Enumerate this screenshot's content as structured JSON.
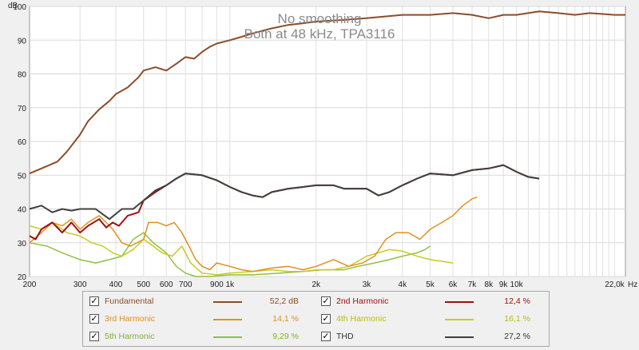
{
  "chart_data": {
    "type": "line",
    "title": "No smoothing",
    "subtitle": "Both at 48 kHz, TPA3116",
    "ylabel": "dB",
    "xlabel": "Hz",
    "x_scale": "log",
    "xlim": [
      200,
      24000
    ],
    "ylim": [
      20,
      100
    ],
    "y_ticks": [
      20,
      30,
      40,
      50,
      60,
      70,
      80,
      90,
      100
    ],
    "x_ticks": [
      {
        "value": 200,
        "label": "200"
      },
      {
        "value": 300,
        "label": "300"
      },
      {
        "value": 400,
        "label": "400"
      },
      {
        "value": 500,
        "label": "500"
      },
      {
        "value": 600,
        "label": "600"
      },
      {
        "value": 700,
        "label": "700"
      },
      {
        "value": 900,
        "label": "900"
      },
      {
        "value": 1000,
        "label": "1k"
      },
      {
        "value": 2000,
        "label": "2k"
      },
      {
        "value": 3000,
        "label": "3k"
      },
      {
        "value": 4000,
        "label": "4k"
      },
      {
        "value": 5000,
        "label": "5k"
      },
      {
        "value": 6000,
        "label": "6k"
      },
      {
        "value": 7000,
        "label": "7k"
      },
      {
        "value": 8000,
        "label": "8k"
      },
      {
        "value": 9000,
        "label": "9k"
      },
      {
        "value": 10000,
        "label": "10k"
      },
      {
        "value": 22000,
        "label": "22,0k"
      }
    ],
    "series": [
      {
        "name": "Fundamental",
        "color": "#8b4d2a",
        "value_label": "52,2 dB",
        "points": [
          [
            200,
            50.5
          ],
          [
            220,
            52
          ],
          [
            250,
            54
          ],
          [
            270,
            57
          ],
          [
            300,
            62
          ],
          [
            320,
            66
          ],
          [
            350,
            69.5
          ],
          [
            380,
            72
          ],
          [
            400,
            74
          ],
          [
            440,
            76
          ],
          [
            480,
            79
          ],
          [
            500,
            81
          ],
          [
            550,
            82
          ],
          [
            600,
            81
          ],
          [
            650,
            83
          ],
          [
            700,
            85
          ],
          [
            750,
            84.5
          ],
          [
            800,
            86.5
          ],
          [
            850,
            88
          ],
          [
            900,
            89
          ],
          [
            1000,
            90
          ],
          [
            1100,
            91
          ],
          [
            1200,
            92
          ],
          [
            1400,
            93.5
          ],
          [
            1600,
            94.5
          ],
          [
            1800,
            95
          ],
          [
            2000,
            95.5
          ],
          [
            2500,
            96
          ],
          [
            3000,
            96.5
          ],
          [
            4000,
            97.5
          ],
          [
            5000,
            97.5
          ],
          [
            6000,
            98
          ],
          [
            7000,
            97.5
          ],
          [
            8000,
            96.5
          ],
          [
            9000,
            97.5
          ],
          [
            10000,
            97.5
          ],
          [
            12000,
            98.5
          ],
          [
            14000,
            98
          ],
          [
            16000,
            97.5
          ],
          [
            18000,
            98
          ],
          [
            22000,
            97.5
          ],
          [
            24000,
            97.5
          ]
        ]
      },
      {
        "name": "2nd Harmonic",
        "color": "#a01010",
        "value_label": "12,4 %",
        "points": [
          [
            200,
            32
          ],
          [
            210,
            31
          ],
          [
            220,
            34
          ],
          [
            240,
            36
          ],
          [
            260,
            33
          ],
          [
            280,
            36
          ],
          [
            300,
            33
          ],
          [
            320,
            35
          ],
          [
            350,
            37
          ],
          [
            370,
            34.5
          ],
          [
            390,
            36
          ],
          [
            410,
            35
          ],
          [
            440,
            38
          ],
          [
            480,
            39
          ],
          [
            500,
            42.5
          ],
          [
            550,
            45
          ],
          [
            600,
            47
          ],
          [
            650,
            49
          ],
          [
            700,
            50.5
          ],
          [
            800,
            50
          ],
          [
            900,
            48.5
          ],
          [
            1000,
            46.5
          ],
          [
            1100,
            45
          ],
          [
            1200,
            44
          ],
          [
            1300,
            43.5
          ],
          [
            1400,
            45
          ],
          [
            1600,
            46
          ],
          [
            1800,
            46.5
          ],
          [
            2000,
            47
          ],
          [
            2300,
            47
          ],
          [
            2500,
            46
          ],
          [
            3000,
            46
          ],
          [
            3300,
            44
          ],
          [
            3600,
            45
          ],
          [
            4000,
            47
          ],
          [
            4500,
            49
          ],
          [
            5000,
            50.5
          ],
          [
            6000,
            50
          ],
          [
            7000,
            51.5
          ],
          [
            8000,
            52
          ],
          [
            9000,
            53
          ],
          [
            10000,
            51
          ],
          [
            11000,
            49.5
          ],
          [
            12000,
            49
          ]
        ]
      },
      {
        "name": "3rd Harmonic",
        "color": "#e09020",
        "value_label": "14,1 %",
        "points": [
          [
            200,
            30
          ],
          [
            220,
            33
          ],
          [
            240,
            36
          ],
          [
            260,
            35
          ],
          [
            280,
            37
          ],
          [
            300,
            34
          ],
          [
            320,
            36
          ],
          [
            350,
            38
          ],
          [
            370,
            36
          ],
          [
            390,
            34
          ],
          [
            420,
            30
          ],
          [
            450,
            29
          ],
          [
            500,
            31
          ],
          [
            520,
            36
          ],
          [
            560,
            36
          ],
          [
            600,
            35
          ],
          [
            640,
            36
          ],
          [
            680,
            33
          ],
          [
            720,
            29
          ],
          [
            760,
            25
          ],
          [
            800,
            23
          ],
          [
            850,
            22
          ],
          [
            900,
            24
          ],
          [
            1000,
            23
          ],
          [
            1100,
            22
          ],
          [
            1200,
            21.5
          ],
          [
            1400,
            22.5
          ],
          [
            1600,
            23
          ],
          [
            1800,
            22
          ],
          [
            2000,
            23
          ],
          [
            2300,
            25
          ],
          [
            2600,
            23
          ],
          [
            2900,
            24
          ],
          [
            3200,
            26
          ],
          [
            3500,
            31
          ],
          [
            3800,
            33
          ],
          [
            4200,
            33
          ],
          [
            4600,
            31
          ],
          [
            5000,
            34
          ],
          [
            5500,
            36
          ],
          [
            6000,
            38
          ],
          [
            6500,
            41
          ],
          [
            7000,
            43
          ],
          [
            7300,
            43.5
          ]
        ]
      },
      {
        "name": "4th Harmonic",
        "color": "#c8cc20",
        "value_label": "16,1 %",
        "points": [
          [
            200,
            35
          ],
          [
            220,
            34
          ],
          [
            240,
            36
          ],
          [
            270,
            33
          ],
          [
            300,
            32
          ],
          [
            330,
            30
          ],
          [
            360,
            29
          ],
          [
            390,
            27
          ],
          [
            420,
            26
          ],
          [
            460,
            28
          ],
          [
            500,
            31
          ],
          [
            540,
            29
          ],
          [
            580,
            27
          ],
          [
            630,
            26
          ],
          [
            680,
            29
          ],
          [
            730,
            24
          ],
          [
            800,
            21
          ],
          [
            900,
            20.5
          ],
          [
            1000,
            21
          ],
          [
            1200,
            21.5
          ],
          [
            1400,
            22
          ],
          [
            1600,
            21.5
          ],
          [
            1800,
            21.5
          ],
          [
            2000,
            22
          ],
          [
            2300,
            22
          ],
          [
            2600,
            23
          ],
          [
            3000,
            26
          ],
          [
            3300,
            27
          ],
          [
            3600,
            28
          ],
          [
            4000,
            27.5
          ],
          [
            4500,
            26
          ],
          [
            5000,
            25
          ],
          [
            5500,
            24.5
          ],
          [
            6000,
            24
          ]
        ]
      },
      {
        "name": "5th Harmonic",
        "color": "#90c040",
        "value_label": "9,29 %",
        "points": [
          [
            200,
            30
          ],
          [
            230,
            29
          ],
          [
            260,
            27
          ],
          [
            300,
            25
          ],
          [
            340,
            24
          ],
          [
            380,
            25
          ],
          [
            420,
            26
          ],
          [
            460,
            31
          ],
          [
            500,
            33
          ],
          [
            540,
            30
          ],
          [
            600,
            27
          ],
          [
            650,
            23
          ],
          [
            700,
            21
          ],
          [
            760,
            20
          ],
          [
            850,
            20
          ],
          [
            1000,
            20.5
          ],
          [
            1200,
            20.5
          ],
          [
            1500,
            21
          ],
          [
            1800,
            21.5
          ],
          [
            2100,
            22
          ],
          [
            2500,
            22
          ],
          [
            2800,
            23
          ],
          [
            3200,
            24
          ],
          [
            3600,
            25
          ],
          [
            4000,
            26
          ],
          [
            4500,
            27
          ],
          [
            4800,
            28
          ],
          [
            5000,
            29
          ]
        ]
      },
      {
        "name": "THD",
        "color": "#404040",
        "value_label": "27,2 %",
        "points": [
          [
            200,
            40
          ],
          [
            220,
            41
          ],
          [
            240,
            39
          ],
          [
            260,
            40
          ],
          [
            280,
            39.5
          ],
          [
            300,
            40
          ],
          [
            340,
            40
          ],
          [
            380,
            37
          ],
          [
            420,
            40
          ],
          [
            460,
            40
          ],
          [
            500,
            42.5
          ],
          [
            550,
            45.5
          ],
          [
            600,
            47
          ],
          [
            650,
            49
          ],
          [
            700,
            50.5
          ],
          [
            800,
            50
          ],
          [
            900,
            48.5
          ],
          [
            1000,
            46.5
          ],
          [
            1100,
            45
          ],
          [
            1200,
            44
          ],
          [
            1300,
            43.5
          ],
          [
            1400,
            45
          ],
          [
            1600,
            46
          ],
          [
            1800,
            46.5
          ],
          [
            2000,
            47
          ],
          [
            2300,
            47
          ],
          [
            2500,
            46
          ],
          [
            3000,
            46
          ],
          [
            3300,
            44
          ],
          [
            3600,
            45
          ],
          [
            4000,
            47
          ],
          [
            4500,
            49
          ],
          [
            5000,
            50.5
          ],
          [
            6000,
            50
          ],
          [
            7000,
            51.5
          ],
          [
            8000,
            52
          ],
          [
            9000,
            53
          ],
          [
            10000,
            51
          ],
          [
            11000,
            49.5
          ],
          [
            12000,
            49
          ]
        ]
      }
    ]
  },
  "legend": {
    "items": [
      {
        "name": "Fundamental",
        "value": "52,2 dB",
        "color": "#8b4d2a",
        "text_color": "#8b4d2a",
        "checked": true
      },
      {
        "name": "2nd Harmonic",
        "value": "12,4 %",
        "color": "#a01010",
        "text_color": "#a01010",
        "checked": true
      },
      {
        "name": "3rd Harmonic",
        "value": "14,1 %",
        "color": "#e09020",
        "text_color": "#e09020",
        "checked": true
      },
      {
        "name": "4th Harmonic",
        "value": "16,1 %",
        "color": "#c8cc20",
        "text_color": "#b8bc10",
        "checked": true
      },
      {
        "name": "5th Harmonic",
        "value": "9,29 %",
        "color": "#90c040",
        "text_color": "#80b030",
        "checked": true
      },
      {
        "name": "THD",
        "value": "27,2 %",
        "color": "#404040",
        "text_color": "#303030",
        "checked": true
      }
    ]
  }
}
